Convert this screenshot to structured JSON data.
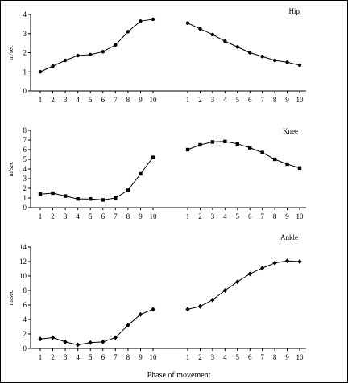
{
  "x_axis_label": "Phase of movement",
  "chart_data": [
    {
      "type": "line",
      "title": "Hip",
      "ylabel": "m/sec",
      "ylim": [
        0,
        4
      ],
      "yticks": [
        "0",
        "1",
        "2",
        "3",
        "4"
      ],
      "categories": [
        "1",
        "2",
        "3",
        "4",
        "5",
        "6",
        "7",
        "8",
        "9",
        "10"
      ],
      "marker": "circle",
      "groups": [
        {
          "values": [
            1.0,
            1.3,
            1.6,
            1.85,
            1.9,
            2.05,
            2.4,
            3.1,
            3.65,
            3.75
          ]
        },
        {
          "values": [
            3.55,
            3.25,
            2.95,
            2.6,
            2.3,
            2.0,
            1.8,
            1.6,
            1.5,
            1.35
          ]
        }
      ]
    },
    {
      "type": "line",
      "title": "Knee",
      "ylabel": "m/sec",
      "ylim": [
        0,
        8
      ],
      "yticks": [
        "0",
        "1",
        "2",
        "3",
        "4",
        "5",
        "6",
        "7",
        "8"
      ],
      "categories": [
        "1",
        "2",
        "3",
        "4",
        "5",
        "6",
        "7",
        "8",
        "9",
        "10"
      ],
      "marker": "square",
      "groups": [
        {
          "values": [
            1.4,
            1.5,
            1.2,
            0.9,
            0.9,
            0.8,
            1.0,
            1.8,
            3.5,
            5.2
          ]
        },
        {
          "values": [
            6.0,
            6.5,
            6.8,
            6.85,
            6.6,
            6.2,
            5.7,
            5.0,
            4.5,
            4.1
          ]
        }
      ]
    },
    {
      "type": "line",
      "title": "Ankle",
      "ylabel": "m/sec",
      "ylim": [
        0,
        14
      ],
      "yticks": [
        "0",
        "2",
        "4",
        "6",
        "8",
        "10",
        "12",
        "14"
      ],
      "categories": [
        "1",
        "2",
        "3",
        "4",
        "5",
        "6",
        "7",
        "8",
        "9",
        "10"
      ],
      "marker": "diamond",
      "groups": [
        {
          "values": [
            1.3,
            1.5,
            0.9,
            0.5,
            0.8,
            0.9,
            1.5,
            3.2,
            4.7,
            5.4
          ]
        },
        {
          "values": [
            5.4,
            5.8,
            6.7,
            8.0,
            9.2,
            10.3,
            11.1,
            11.8,
            12.1,
            12.0
          ]
        }
      ]
    }
  ]
}
